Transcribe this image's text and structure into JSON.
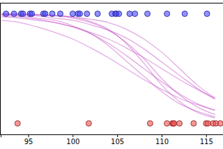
{
  "chart_data": {
    "type": "line",
    "xlim": [
      91.9,
      116.9
    ],
    "xticks": [
      95,
      100,
      105,
      110,
      115
    ],
    "ylim": [
      -0.1,
      1.1
    ],
    "tick_labels": "x",
    "series": [
      {
        "type": "line",
        "color": "#c040c0",
        "line_style": "solid",
        "x": [
          92,
          94,
          96,
          98,
          100,
          102,
          104,
          106,
          108,
          110,
          112,
          114,
          116
        ],
        "values": [
          0.98,
          0.97,
          0.95,
          0.92,
          0.88,
          0.82,
          0.73,
          0.62,
          0.5,
          0.38,
          0.27,
          0.18,
          0.12
        ]
      },
      {
        "type": "line",
        "color": "#c040c0",
        "line_style": "solid",
        "x": [
          92,
          94,
          96,
          98,
          100,
          102,
          104,
          106,
          108,
          110,
          112,
          114,
          116
        ],
        "values": [
          0.97,
          0.96,
          0.94,
          0.92,
          0.88,
          0.83,
          0.77,
          0.69,
          0.6,
          0.5,
          0.4,
          0.31,
          0.23
        ]
      },
      {
        "type": "line",
        "color": "#c040c0",
        "line_style": "solid",
        "x": [
          92,
          94,
          96,
          98,
          100,
          102,
          104,
          106,
          108,
          110,
          112,
          114,
          116
        ],
        "values": [
          0.99,
          0.98,
          0.96,
          0.94,
          0.89,
          0.82,
          0.71,
          0.57,
          0.43,
          0.29,
          0.18,
          0.11,
          0.06
        ]
      },
      {
        "type": "line",
        "color": "#c040c0",
        "line_style": "solid",
        "x": [
          92,
          94,
          96,
          98,
          100,
          102,
          104,
          106,
          108,
          110,
          112,
          114,
          116
        ],
        "values": [
          0.997,
          0.995,
          0.99,
          0.98,
          0.96,
          0.92,
          0.85,
          0.74,
          0.59,
          0.41,
          0.26,
          0.15,
          0.08
        ]
      },
      {
        "type": "line",
        "color": "#c040c0",
        "line_style": "solid",
        "x": [
          92,
          94,
          96,
          98,
          100,
          102,
          104,
          106,
          108,
          110,
          112,
          114,
          116
        ],
        "values": [
          0.99,
          0.99,
          0.98,
          0.96,
          0.94,
          0.9,
          0.85,
          0.78,
          0.68,
          0.56,
          0.44,
          0.32,
          0.22
        ]
      },
      {
        "type": "line",
        "color": "#c040c0",
        "line_style": "solid",
        "x": [
          92,
          94,
          96,
          98,
          100,
          102,
          104,
          106,
          108,
          110,
          112,
          114,
          116
        ],
        "values": [
          0.94,
          0.92,
          0.88,
          0.83,
          0.77,
          0.69,
          0.6,
          0.5,
          0.4,
          0.31,
          0.23,
          0.17,
          0.12
        ]
      },
      {
        "type": "line",
        "color": "#c040c0",
        "line_style": "solid",
        "x": [
          92,
          94,
          96,
          98,
          100,
          102,
          104,
          106,
          108,
          110,
          112,
          114,
          116
        ],
        "values": [
          0.999,
          0.997,
          0.993,
          0.985,
          0.97,
          0.93,
          0.86,
          0.73,
          0.55,
          0.35,
          0.2,
          0.1,
          0.05
        ]
      },
      {
        "type": "line",
        "color": "#c040c0",
        "line_style": "solid",
        "x": [
          92,
          94,
          96,
          98,
          100,
          102,
          104,
          106,
          108,
          110,
          112,
          114,
          116
        ],
        "values": [
          0.998,
          0.996,
          0.99,
          0.985,
          0.97,
          0.95,
          0.92,
          0.86,
          0.77,
          0.65,
          0.5,
          0.35,
          0.23
        ]
      },
      {
        "type": "scatter",
        "color": "#4a4aff",
        "marker": "circle",
        "x": [
          92.5,
          93.4,
          94.2,
          94.4,
          95.2,
          95.4,
          96.7,
          96.9,
          97.7,
          98.6,
          100.0,
          100.6,
          100.8,
          101.6,
          102.8,
          104.4,
          104.8,
          104.9,
          105.2,
          106.4,
          107.0,
          108.4,
          110.6,
          112.6,
          115.1
        ],
        "values": [
          1,
          1,
          1,
          1,
          1,
          1,
          1,
          1,
          1,
          1,
          1,
          1,
          1,
          1,
          1,
          1,
          1,
          1,
          1,
          1,
          1,
          1,
          1,
          1,
          1
        ]
      },
      {
        "type": "scatter",
        "color": "#f05050",
        "marker": "circle",
        "x": [
          93.8,
          101.8,
          108.7,
          110.6,
          111.2,
          111.3,
          111.4,
          112.0,
          113.6,
          115.0,
          115.2,
          115.8,
          116.1,
          116.6
        ],
        "values": [
          0,
          0,
          0,
          0,
          0,
          0,
          0,
          0,
          0,
          0,
          0,
          0,
          0,
          0
        ]
      }
    ]
  }
}
